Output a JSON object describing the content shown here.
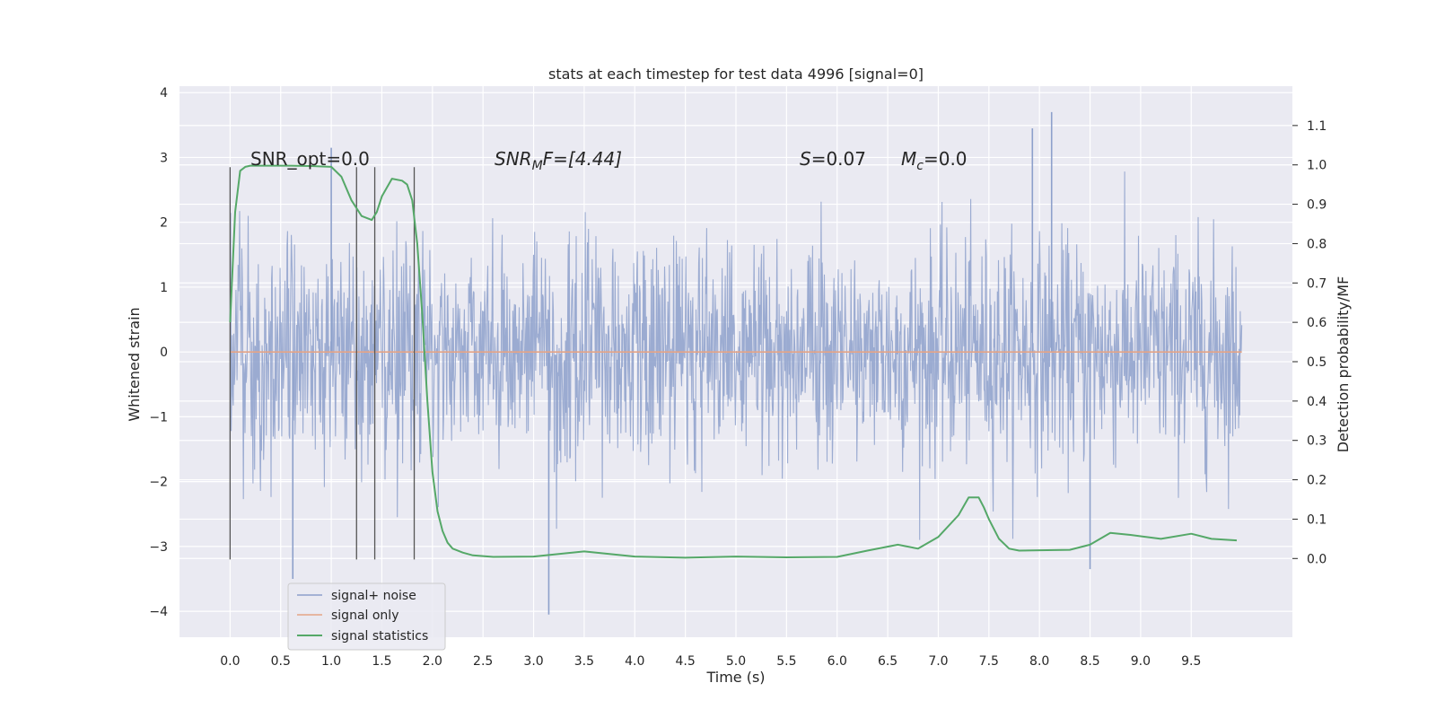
{
  "chart_data": {
    "type": "line",
    "title": "stats at each timestep for test data 4996 [signal=0]",
    "xlabel": "Time (s)",
    "ylabel": "Whitened strain",
    "y2label": "Detection probability/MF",
    "xlim": [
      -0.5,
      10.5
    ],
    "ylim": [
      -4.4,
      4.1
    ],
    "y2lim": [
      -0.2,
      1.2
    ],
    "xticks": [
      "0.0",
      "0.5",
      "1.0",
      "1.5",
      "2.0",
      "2.5",
      "3.0",
      "3.5",
      "4.0",
      "4.5",
      "5.0",
      "5.5",
      "6.0",
      "6.5",
      "7.0",
      "7.5",
      "8.0",
      "8.5",
      "9.0",
      "9.5"
    ],
    "yticks": [
      "−4",
      "−3",
      "−2",
      "−1",
      "0",
      "1",
      "2",
      "3",
      "4"
    ],
    "y2ticks": [
      "0.0",
      "0.1",
      "0.2",
      "0.3",
      "0.4",
      "0.5",
      "0.6",
      "0.7",
      "0.8",
      "0.9",
      "1.0",
      "1.1"
    ],
    "grid": true,
    "legend_position": "lower-left",
    "annotations": {
      "snr_opt": "SNR_opt=0.0",
      "snr_mf_base": "SNR",
      "snr_mf_sub": "M",
      "snr_mf_rest": "F=[4.44]",
      "s_var": "S",
      "s_value": "=0.07",
      "mc_var": "M",
      "mc_sub": "c",
      "mc_value": "=0.0"
    },
    "vlines_x": [
      0.0,
      1.25,
      1.43,
      1.82
    ],
    "series": [
      {
        "name": "signal+ noise",
        "color": "#8da0cb",
        "description_stats": {
          "t_start": 0.0,
          "t_end": 10.0,
          "typical_abs": 1.0,
          "max": 3.7,
          "min": -4.05
        },
        "peaks": [
          {
            "x": 0.62,
            "y": -3.5
          },
          {
            "x": 1.0,
            "y": 3.15
          },
          {
            "x": 3.15,
            "y": -4.05
          },
          {
            "x": 7.93,
            "y": 3.45
          },
          {
            "x": 8.12,
            "y": 3.7
          },
          {
            "x": 8.5,
            "y": -3.35
          }
        ]
      },
      {
        "name": "signal only",
        "color": "#e5a486",
        "x": [
          0.0,
          10.0
        ],
        "y": [
          0.0,
          0.0
        ]
      },
      {
        "name": "signal statistics",
        "color": "#55a868",
        "axis": "right",
        "x": [
          0.0,
          0.05,
          0.1,
          0.15,
          0.2,
          0.3,
          0.4,
          0.6,
          0.8,
          1.0,
          1.1,
          1.2,
          1.3,
          1.4,
          1.45,
          1.5,
          1.6,
          1.7,
          1.75,
          1.8,
          1.85,
          1.9,
          1.95,
          2.0,
          2.05,
          2.1,
          2.15,
          2.2,
          2.3,
          2.4,
          2.6,
          3.0,
          3.5,
          4.0,
          4.5,
          5.0,
          5.5,
          6.0,
          6.3,
          6.6,
          6.8,
          7.0,
          7.2,
          7.3,
          7.4,
          7.45,
          7.5,
          7.6,
          7.7,
          7.8,
          8.0,
          8.3,
          8.5,
          8.7,
          8.9,
          9.2,
          9.5,
          9.7,
          9.95
        ],
        "y": [
          0.6,
          0.88,
          0.985,
          0.995,
          0.998,
          0.998,
          0.998,
          0.998,
          0.997,
          0.995,
          0.97,
          0.91,
          0.87,
          0.86,
          0.88,
          0.92,
          0.965,
          0.96,
          0.95,
          0.91,
          0.8,
          0.62,
          0.4,
          0.22,
          0.12,
          0.07,
          0.04,
          0.025,
          0.015,
          0.008,
          0.004,
          0.005,
          0.018,
          0.005,
          0.002,
          0.005,
          0.003,
          0.004,
          0.02,
          0.035,
          0.025,
          0.055,
          0.11,
          0.155,
          0.155,
          0.13,
          0.1,
          0.05,
          0.025,
          0.02,
          0.021,
          0.022,
          0.035,
          0.065,
          0.06,
          0.05,
          0.063,
          0.05,
          0.046
        ]
      }
    ]
  }
}
